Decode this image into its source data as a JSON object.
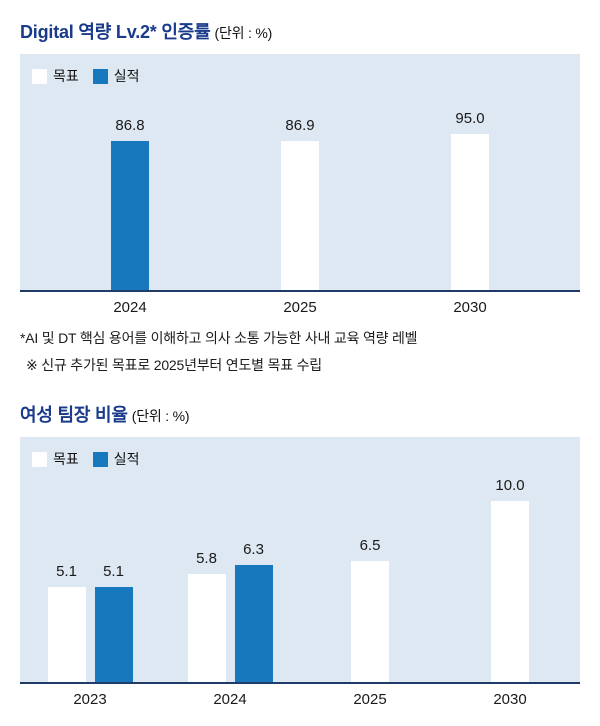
{
  "colors": {
    "title_blue": "#1a3b8b",
    "panel_background": "#dde8f2",
    "axis_line": "#1f3c68",
    "bar_target_white": "#ffffff",
    "bar_actual_blue": "#1878bd"
  },
  "chart_data": [
    {
      "type": "bar",
      "title": "Digital 역량 Lv.2* 인증률",
      "unit_label": "(단위 : %)",
      "categories": [
        "2024",
        "2025",
        "2030"
      ],
      "series": [
        {
          "name": "목표",
          "color": "#ffffff",
          "values": [
            null,
            86.9,
            95.0
          ]
        },
        {
          "name": "실적",
          "color": "#1878bd",
          "values": [
            86.8,
            null,
            null
          ]
        }
      ],
      "ylim": [
        0,
        105
      ],
      "grid": false,
      "legend_position": "top-left",
      "value_labels_shown": true,
      "footnotes": [
        "*AI 및 DT 핵심 용어를 이해하고 의사 소통 가능한 사내 교육 역량 레벨",
        "※ 신규 추가된 목표로 2025년부터 연도별 목표 수립"
      ]
    },
    {
      "type": "bar",
      "title": "여성 팀장 비율",
      "unit_label": "(단위 : %)",
      "categories": [
        "2023",
        "2024",
        "2025",
        "2030"
      ],
      "series": [
        {
          "name": "목표",
          "color": "#ffffff",
          "values": [
            5.1,
            5.8,
            6.5,
            10.0
          ]
        },
        {
          "name": "실적",
          "color": "#1878bd",
          "values": [
            5.1,
            6.3,
            null,
            null
          ]
        }
      ],
      "ylim": [
        0,
        11
      ],
      "grid": false,
      "legend_position": "top-left",
      "value_labels_shown": true,
      "footnotes": []
    }
  ]
}
